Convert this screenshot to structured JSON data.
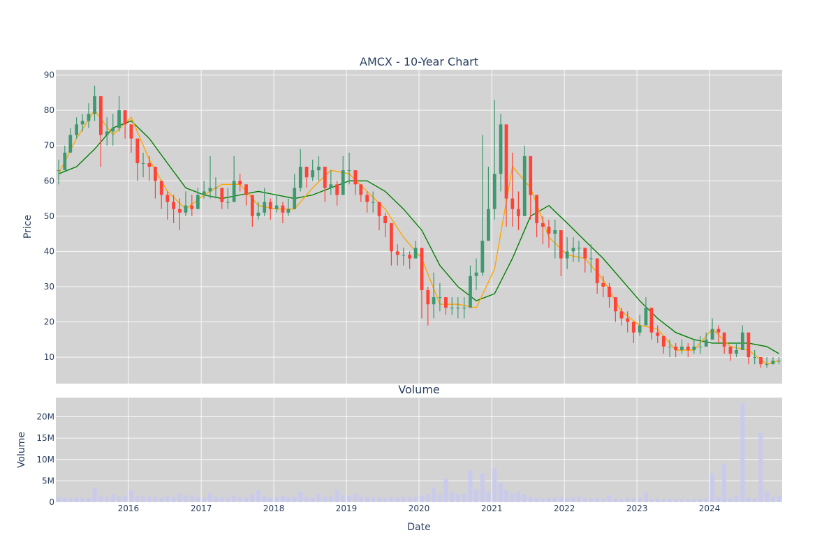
{
  "chart_data": [
    {
      "type": "candlestick",
      "title": "AMCX - 10-Year Chart",
      "ylabel": "Price",
      "ylim": [
        2.5,
        91.5
      ],
      "yticks": [
        10,
        20,
        30,
        40,
        50,
        60,
        70,
        80,
        90
      ],
      "xrange": [
        "2015-01-01",
        "2024-12-31"
      ],
      "background": "#d3d3d3",
      "colors": {
        "increasing": "#3d9970",
        "decreasing": "#ff4136",
        "ma_short": "#ffa500",
        "ma_long": "#008000"
      },
      "series": [
        {
          "kind": "price",
          "x": [
            "2015-01",
            "2015-02",
            "2015-03",
            "2015-04",
            "2015-05",
            "2015-06",
            "2015-07",
            "2015-08",
            "2015-09",
            "2015-10",
            "2015-11",
            "2015-12",
            "2016-01",
            "2016-02",
            "2016-03",
            "2016-04",
            "2016-05",
            "2016-06",
            "2016-07",
            "2016-08",
            "2016-09",
            "2016-10",
            "2016-11",
            "2016-12",
            "2017-01",
            "2017-02",
            "2017-03",
            "2017-04",
            "2017-05",
            "2017-06",
            "2017-07",
            "2017-08",
            "2017-09",
            "2017-10",
            "2017-11",
            "2017-12",
            "2018-01",
            "2018-02",
            "2018-03",
            "2018-04",
            "2018-05",
            "2018-06",
            "2018-07",
            "2018-08",
            "2018-09",
            "2018-10",
            "2018-11",
            "2018-12",
            "2019-01",
            "2019-02",
            "2019-03",
            "2019-04",
            "2019-05",
            "2019-06",
            "2019-07",
            "2019-08",
            "2019-09",
            "2019-10",
            "2019-11",
            "2019-12",
            "2020-01",
            "2020-02",
            "2020-03",
            "2020-04",
            "2020-05",
            "2020-06",
            "2020-07",
            "2020-08",
            "2020-09",
            "2020-10",
            "2020-11",
            "2020-12",
            "2021-01",
            "2021-02",
            "2021-03",
            "2021-04",
            "2021-05",
            "2021-06",
            "2021-07",
            "2021-08",
            "2021-09",
            "2021-10",
            "2021-11",
            "2021-12",
            "2022-01",
            "2022-02",
            "2022-03",
            "2022-04",
            "2022-05",
            "2022-06",
            "2022-07",
            "2022-08",
            "2022-09",
            "2022-10",
            "2022-11",
            "2022-12",
            "2023-01",
            "2023-02",
            "2023-03",
            "2023-04",
            "2023-05",
            "2023-06",
            "2023-07",
            "2023-08",
            "2023-09",
            "2023-10",
            "2023-11",
            "2023-12",
            "2024-01",
            "2024-02",
            "2024-03",
            "2024-04",
            "2024-05",
            "2024-06",
            "2024-07",
            "2024-08",
            "2024-09",
            "2024-10",
            "2024-11",
            "2024-12"
          ],
          "close": [
            63,
            68,
            73,
            76,
            77,
            79,
            84,
            73,
            74,
            75,
            80,
            76,
            72,
            65,
            65,
            64,
            60,
            56,
            54,
            52,
            51,
            53,
            52,
            56,
            57,
            58,
            58,
            54,
            54,
            60,
            59,
            56,
            50,
            51,
            54,
            52,
            53,
            51,
            52,
            58,
            64,
            61,
            63,
            64,
            58,
            59,
            56,
            63,
            63,
            59,
            56,
            54,
            54,
            50,
            48,
            40,
            39,
            39,
            38,
            41,
            29,
            25,
            27,
            27,
            24,
            24,
            24,
            24,
            33,
            34,
            43,
            52,
            62,
            76,
            55,
            52,
            50,
            67,
            56,
            48,
            47,
            45,
            46,
            38,
            40,
            41,
            41,
            38,
            38,
            31,
            30,
            27,
            23,
            21,
            20,
            17,
            19,
            24,
            17,
            16,
            13,
            13,
            12,
            13,
            12,
            13,
            13,
            15,
            18,
            17,
            13,
            11,
            12,
            17,
            10,
            10,
            8,
            8,
            9,
            9
          ],
          "high": [
            66,
            70,
            75,
            78,
            79,
            82,
            87,
            77,
            78,
            79,
            84,
            80,
            76,
            71,
            68,
            67,
            63,
            59,
            57,
            56,
            55,
            57,
            56,
            58,
            60,
            67,
            61,
            57,
            58,
            67,
            62,
            59,
            53,
            54,
            58,
            55,
            56,
            54,
            55,
            62,
            69,
            64,
            66,
            67,
            62,
            63,
            60,
            67,
            68,
            63,
            59,
            57,
            57,
            53,
            51,
            43,
            42,
            41,
            40,
            43,
            32,
            30,
            34,
            31,
            27,
            27,
            27,
            27,
            36,
            38,
            73,
            64,
            83,
            79,
            72,
            68,
            57,
            70,
            60,
            51,
            50,
            49,
            49,
            42,
            44,
            44,
            43,
            41,
            42,
            35,
            33,
            31,
            27,
            24,
            23,
            20,
            22,
            27,
            20,
            19,
            15,
            15,
            14,
            15,
            14,
            15,
            16,
            17,
            21,
            19,
            15,
            13,
            14,
            19,
            12,
            12,
            10,
            10,
            10,
            10
          ],
          "low": [
            59,
            63,
            69,
            72,
            74,
            75,
            77,
            64,
            70,
            70,
            74,
            72,
            68,
            60,
            61,
            60,
            55,
            52,
            49,
            48,
            46,
            50,
            50,
            53,
            55,
            55,
            55,
            52,
            52,
            57,
            57,
            53,
            47,
            49,
            50,
            49,
            51,
            48,
            50,
            54,
            57,
            58,
            60,
            60,
            54,
            56,
            53,
            58,
            59,
            56,
            54,
            51,
            51,
            46,
            44,
            36,
            36,
            36,
            35,
            38,
            21,
            19,
            21,
            23,
            22,
            22,
            21,
            21,
            25,
            29,
            33,
            46,
            49,
            57,
            47,
            47,
            46,
            55,
            49,
            44,
            42,
            41,
            38,
            33,
            35,
            37,
            37,
            34,
            34,
            28,
            27,
            24,
            20,
            19,
            17,
            14,
            16,
            20,
            15,
            14,
            11,
            10,
            10,
            11,
            10,
            11,
            11,
            13,
            15,
            14,
            11,
            9,
            10,
            13,
            8,
            8,
            7,
            7,
            8,
            8
          ]
        },
        {
          "kind": "ma_short",
          "x": [
            "2015-01",
            "2015-04",
            "2015-07",
            "2015-10",
            "2016-01",
            "2016-04",
            "2016-07",
            "2016-10",
            "2017-01",
            "2017-04",
            "2017-07",
            "2017-10",
            "2018-01",
            "2018-04",
            "2018-07",
            "2018-10",
            "2019-01",
            "2019-04",
            "2019-07",
            "2019-10",
            "2020-01",
            "2020-04",
            "2020-07",
            "2020-10",
            "2021-01",
            "2021-04",
            "2021-07",
            "2021-10",
            "2022-01",
            "2022-04",
            "2022-07",
            "2022-10",
            "2023-01",
            "2023-04",
            "2023-07",
            "2023-10",
            "2024-01",
            "2024-04",
            "2024-07",
            "2024-10",
            "2024-12"
          ],
          "values": [
            62,
            72,
            80,
            73,
            78,
            66,
            57,
            52,
            56,
            59,
            59,
            53,
            52,
            52,
            58,
            63,
            62,
            57,
            52,
            44,
            38,
            25,
            25,
            24,
            35,
            64,
            58,
            44,
            39,
            38,
            32,
            23,
            19,
            18,
            12,
            12,
            18,
            13,
            12,
            8,
            9
          ]
        },
        {
          "kind": "ma_long",
          "x": [
            "2015-01",
            "2015-04",
            "2015-07",
            "2015-10",
            "2016-01",
            "2016-04",
            "2016-07",
            "2016-10",
            "2017-01",
            "2017-04",
            "2017-07",
            "2017-10",
            "2018-01",
            "2018-04",
            "2018-07",
            "2018-10",
            "2019-01",
            "2019-04",
            "2019-07",
            "2019-10",
            "2020-01",
            "2020-04",
            "2020-07",
            "2020-10",
            "2021-01",
            "2021-04",
            "2021-07",
            "2021-10",
            "2022-01",
            "2022-04",
            "2022-07",
            "2022-10",
            "2023-01",
            "2023-04",
            "2023-07",
            "2023-10",
            "2024-01",
            "2024-04",
            "2024-07",
            "2024-10",
            "2024-12"
          ],
          "values": [
            62,
            64,
            69,
            75,
            77,
            72,
            65,
            58,
            56,
            55,
            56,
            57,
            56,
            55,
            56,
            58,
            60,
            60,
            57,
            52,
            46,
            36,
            30,
            26,
            28,
            38,
            50,
            53,
            48,
            43,
            38,
            32,
            26,
            21,
            17,
            15,
            14,
            14,
            14,
            13,
            11
          ]
        }
      ]
    },
    {
      "type": "bar",
      "title": "Volume",
      "xlabel": "Date",
      "ylabel": "Volume",
      "ylim": [
        0,
        24500000
      ],
      "yticks": [
        0,
        5000000,
        10000000,
        15000000,
        20000000
      ],
      "ytick_labels": [
        "0",
        "5M",
        "10M",
        "15M",
        "20M"
      ],
      "xticks": [
        "2016",
        "2017",
        "2018",
        "2019",
        "2020",
        "2021",
        "2022",
        "2023",
        "2024"
      ],
      "bar_color": "#c9c9f0",
      "series": [
        {
          "x": [
            "2015-01",
            "2015-02",
            "2015-03",
            "2015-04",
            "2015-05",
            "2015-06",
            "2015-07",
            "2015-08",
            "2015-09",
            "2015-10",
            "2015-11",
            "2015-12",
            "2016-01",
            "2016-02",
            "2016-03",
            "2016-04",
            "2016-05",
            "2016-06",
            "2016-07",
            "2016-08",
            "2016-09",
            "2016-10",
            "2016-11",
            "2016-12",
            "2017-01",
            "2017-02",
            "2017-03",
            "2017-04",
            "2017-05",
            "2017-06",
            "2017-07",
            "2017-08",
            "2017-09",
            "2017-10",
            "2017-11",
            "2017-12",
            "2018-01",
            "2018-02",
            "2018-03",
            "2018-04",
            "2018-05",
            "2018-06",
            "2018-07",
            "2018-08",
            "2018-09",
            "2018-10",
            "2018-11",
            "2018-12",
            "2019-01",
            "2019-02",
            "2019-03",
            "2019-04",
            "2019-05",
            "2019-06",
            "2019-07",
            "2019-08",
            "2019-09",
            "2019-10",
            "2019-11",
            "2019-12",
            "2020-01",
            "2020-02",
            "2020-03",
            "2020-04",
            "2020-05",
            "2020-06",
            "2020-07",
            "2020-08",
            "2020-09",
            "2020-10",
            "2020-11",
            "2020-12",
            "2021-01",
            "2021-02",
            "2021-03",
            "2021-04",
            "2021-05",
            "2021-06",
            "2021-07",
            "2021-08",
            "2021-09",
            "2021-10",
            "2021-11",
            "2021-12",
            "2022-01",
            "2022-02",
            "2022-03",
            "2022-04",
            "2022-05",
            "2022-06",
            "2022-07",
            "2022-08",
            "2022-09",
            "2022-10",
            "2022-11",
            "2022-12",
            "2023-01",
            "2023-02",
            "2023-03",
            "2023-04",
            "2023-05",
            "2023-06",
            "2023-07",
            "2023-08",
            "2023-09",
            "2023-10",
            "2023-11",
            "2023-12",
            "2024-01",
            "2024-02",
            "2024-03",
            "2024-04",
            "2024-05",
            "2024-06",
            "2024-07",
            "2024-08",
            "2024-09",
            "2024-10",
            "2024-11",
            "2024-12"
          ],
          "values": [
            1200000,
            1000000,
            900000,
            1100000,
            900000,
            1000000,
            3500000,
            1500000,
            1200000,
            1800000,
            1300000,
            1500000,
            2800000,
            1500000,
            1400000,
            1200000,
            1300000,
            1100000,
            1500000,
            1200000,
            2000000,
            1500000,
            1700000,
            1200000,
            1000000,
            2200000,
            1300000,
            1100000,
            1000000,
            1600000,
            1200000,
            1100000,
            1800000,
            2800000,
            1400000,
            1100000,
            1200000,
            1500000,
            1100000,
            1300000,
            2500000,
            1200000,
            1000000,
            1900000,
            1200000,
            1400000,
            2800000,
            1600000,
            1500000,
            2000000,
            1300000,
            1200000,
            1100000,
            1100000,
            1000000,
            1200000,
            1100000,
            1300000,
            1100000,
            1200000,
            1500000,
            2000000,
            3500000,
            1800000,
            5500000,
            2500000,
            1800000,
            2000000,
            7500000,
            3000000,
            6800000,
            2500000,
            8000000,
            4500000,
            2800000,
            2000000,
            2500000,
            1800000,
            1200000,
            1000000,
            900000,
            1000000,
            1100000,
            1200000,
            1000000,
            1100000,
            1300000,
            1000000,
            900000,
            1000000,
            800000,
            1600000,
            900000,
            800000,
            1100000,
            900000,
            1000000,
            2300000,
            900000,
            800000,
            700000,
            800000,
            700000,
            700000,
            700000,
            700000,
            800000,
            900000,
            6800000,
            1200000,
            9000000,
            900000,
            1600000,
            23200000,
            1000000,
            900000,
            16200000,
            2500000,
            1200000,
            1400000
          ]
        }
      ]
    }
  ]
}
